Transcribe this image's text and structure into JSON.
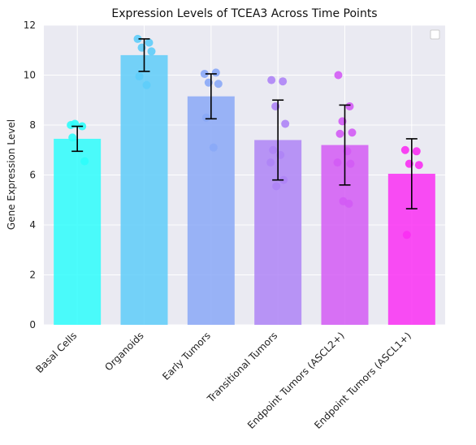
{
  "chart_data": {
    "type": "bar",
    "title": "Expression Levels of TCEA3 Across Time Points",
    "xlabel": "",
    "ylabel": "Gene Expression Level",
    "ylim": [
      0,
      12
    ],
    "yticks": [
      "0",
      "2",
      "4",
      "6",
      "8",
      "10",
      "12"
    ],
    "grid": true,
    "legend": "top-right (empty)",
    "categories": [
      "Basal Cells",
      "Organoids",
      "Early Tumors",
      "Transitional Tumors",
      "Endpoint Tumors (ASCL2+)",
      "Endpoint Tumors (ASCL1+)"
    ],
    "values": [
      7.45,
      10.8,
      9.15,
      7.4,
      7.2,
      6.05
    ],
    "error": [
      0.5,
      0.65,
      0.9,
      1.6,
      1.6,
      1.4
    ],
    "colors": [
      "#2efdfb",
      "#5ecdf9",
      "#8aa8f7",
      "#ae84f6",
      "#d35bf5",
      "#fa2ff3"
    ],
    "points": [
      [
        8.0,
        7.95,
        8.05,
        6.55,
        7.5
      ],
      [
        11.45,
        11.3,
        11.1,
        10.95,
        9.95,
        9.6
      ],
      [
        10.05,
        10.1,
        9.7,
        9.65,
        8.3,
        7.1
      ],
      [
        9.8,
        9.75,
        8.75,
        8.05,
        7.0,
        6.8,
        6.5,
        5.8,
        5.55
      ],
      [
        10.0,
        8.75,
        8.15,
        7.7,
        7.65,
        6.95,
        6.5,
        6.45,
        4.95,
        4.85
      ],
      [
        7.0,
        6.95,
        6.45,
        6.4,
        3.6
      ]
    ]
  }
}
